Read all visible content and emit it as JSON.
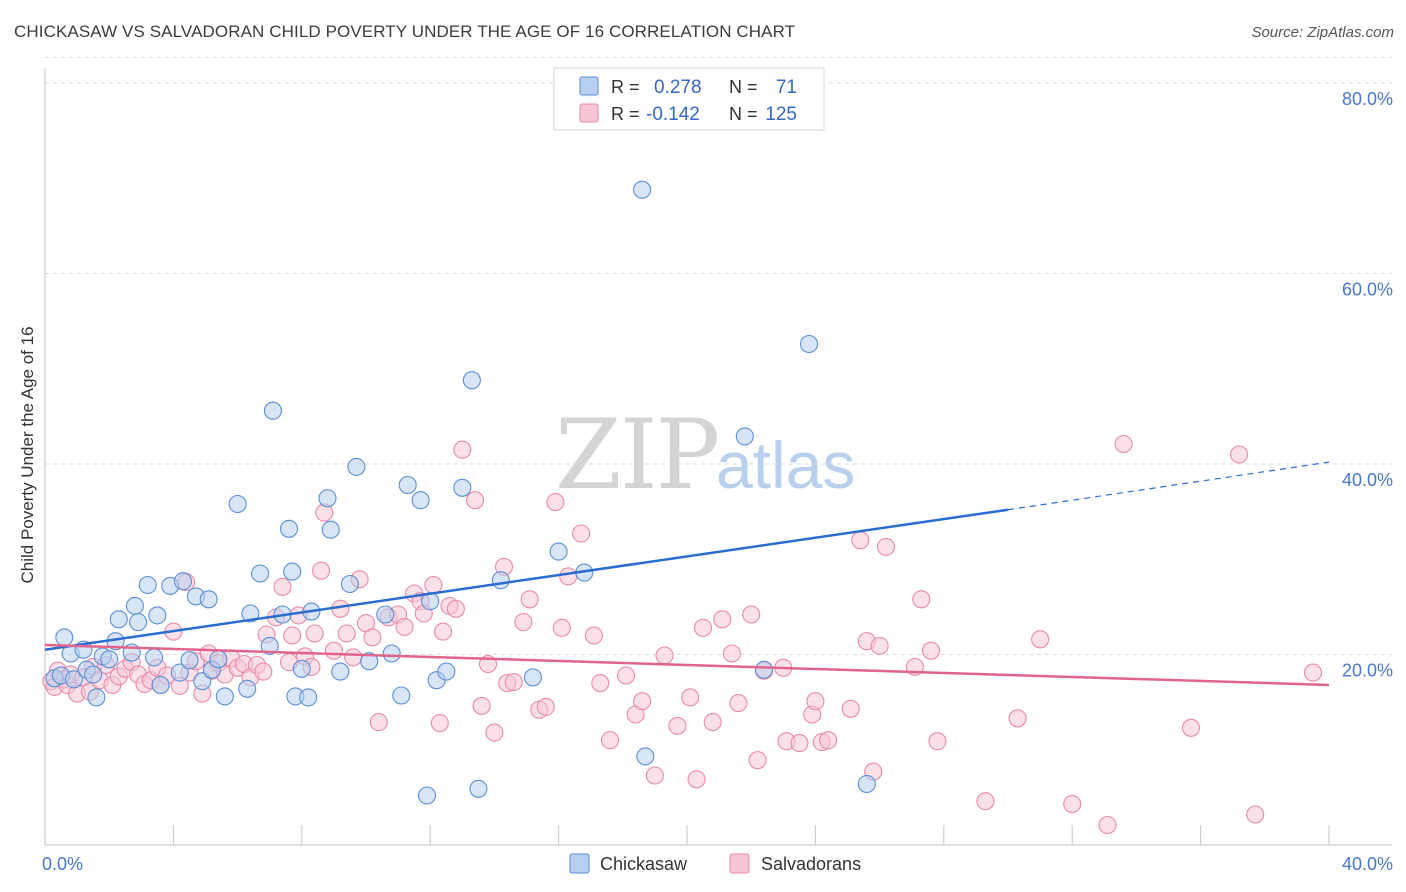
{
  "title": "CHICKASAW VS SALVADORAN CHILD POVERTY UNDER THE AGE OF 16 CORRELATION CHART",
  "source": "Source: ZipAtlas.com",
  "watermark": {
    "zip": "ZIP",
    "atlas": "atlas"
  },
  "colors": {
    "blue_fill": "#b7cff0",
    "blue_stroke": "#5b8fd6",
    "blue_line": "#2a6ccf",
    "pink_fill": "#f7c6d6",
    "pink_stroke": "#e98aa8",
    "pink_line": "#e0648c",
    "grid": "#d9d9d9",
    "tick_text": "#4a78c9"
  },
  "legend_box": {
    "rows": [
      {
        "r_label": "R =",
        "r_value": "0.278",
        "n_label": "N =",
        "n_value": "71"
      },
      {
        "r_label": "R =",
        "r_value": "-0.142",
        "n_label": "N =",
        "n_value": "125"
      }
    ]
  },
  "chart_data": {
    "type": "scatter",
    "title": "CHICKASAW VS SALVADORAN CHILD POVERTY UNDER THE AGE OF 16 CORRELATION CHART",
    "xlabel": "",
    "ylabel": "Child Poverty Under the Age of 16",
    "xlim": [
      0,
      40
    ],
    "ylim": [
      0,
      83
    ],
    "x_tick_labels": [
      "0.0%",
      "40.0%"
    ],
    "y_ticks": [
      20,
      40,
      60,
      80
    ],
    "y_tick_labels": [
      "20.0%",
      "40.0%",
      "60.0%",
      "80.0%"
    ],
    "legend_position": "bottom-center",
    "series": [
      {
        "name": "Chickasaw",
        "color": "blue",
        "trend": {
          "x0": 0,
          "y0": 20.5,
          "x1": 30,
          "y1": 35.2,
          "dash_to_x": 40,
          "dash_to_y": 40.2
        },
        "points": [
          [
            0.3,
            17.5
          ],
          [
            0.5,
            17.8
          ],
          [
            0.6,
            21.8
          ],
          [
            0.8,
            20.1
          ],
          [
            0.9,
            17.4
          ],
          [
            1.2,
            20.5
          ],
          [
            1.3,
            18.4
          ],
          [
            1.5,
            17.9
          ],
          [
            1.6,
            15.5
          ],
          [
            1.8,
            19.8
          ],
          [
            2.0,
            19.5
          ],
          [
            2.2,
            21.4
          ],
          [
            2.3,
            23.7
          ],
          [
            2.7,
            20.2
          ],
          [
            2.8,
            25.1
          ],
          [
            2.9,
            23.4
          ],
          [
            3.2,
            27.3
          ],
          [
            3.4,
            19.7
          ],
          [
            3.5,
            24.1
          ],
          [
            3.6,
            16.8
          ],
          [
            3.9,
            27.2
          ],
          [
            4.2,
            18.1
          ],
          [
            4.3,
            27.7
          ],
          [
            4.5,
            19.4
          ],
          [
            4.7,
            26.1
          ],
          [
            4.9,
            17.2
          ],
          [
            5.1,
            25.8
          ],
          [
            5.2,
            18.4
          ],
          [
            5.4,
            19.5
          ],
          [
            5.6,
            15.6
          ],
          [
            6.0,
            35.8
          ],
          [
            6.3,
            16.4
          ],
          [
            6.4,
            24.3
          ],
          [
            6.7,
            28.5
          ],
          [
            7.0,
            20.9
          ],
          [
            7.1,
            45.6
          ],
          [
            7.4,
            24.2
          ],
          [
            7.6,
            33.2
          ],
          [
            7.7,
            28.7
          ],
          [
            7.8,
            15.6
          ],
          [
            8.0,
            18.5
          ],
          [
            8.2,
            15.5
          ],
          [
            8.3,
            24.5
          ],
          [
            8.8,
            36.4
          ],
          [
            8.9,
            33.1
          ],
          [
            9.2,
            18.2
          ],
          [
            9.5,
            27.4
          ],
          [
            9.7,
            39.7
          ],
          [
            10.1,
            19.3
          ],
          [
            10.6,
            24.2
          ],
          [
            10.8,
            20.1
          ],
          [
            11.1,
            15.7
          ],
          [
            11.3,
            37.8
          ],
          [
            11.7,
            36.2
          ],
          [
            11.9,
            5.2
          ],
          [
            12.0,
            25.6
          ],
          [
            12.2,
            17.3
          ],
          [
            12.5,
            18.2
          ],
          [
            13.0,
            37.5
          ],
          [
            13.3,
            48.8
          ],
          [
            13.5,
            5.9
          ],
          [
            14.2,
            27.8
          ],
          [
            15.2,
            17.6
          ],
          [
            16.0,
            30.8
          ],
          [
            16.8,
            28.6
          ],
          [
            18.6,
            68.8
          ],
          [
            18.7,
            9.3
          ],
          [
            21.8,
            42.9
          ],
          [
            22.4,
            18.4
          ],
          [
            23.8,
            52.6
          ],
          [
            25.6,
            6.4
          ]
        ]
      },
      {
        "name": "Salvadorans",
        "color": "pink",
        "trend": {
          "x0": 0,
          "y0": 21.0,
          "x1": 40,
          "y1": 16.8
        },
        "points": [
          [
            0.2,
            17.2
          ],
          [
            0.3,
            16.6
          ],
          [
            0.4,
            18.3
          ],
          [
            0.6,
            17.4
          ],
          [
            0.7,
            16.8
          ],
          [
            0.8,
            17.9
          ],
          [
            1.0,
            15.9
          ],
          [
            1.2,
            17.6
          ],
          [
            1.4,
            16.1
          ],
          [
            1.5,
            18.7
          ],
          [
            1.7,
            17.3
          ],
          [
            1.9,
            18.9
          ],
          [
            2.1,
            16.8
          ],
          [
            2.3,
            17.7
          ],
          [
            2.5,
            18.5
          ],
          [
            2.7,
            19.2
          ],
          [
            2.9,
            17.9
          ],
          [
            3.1,
            16.9
          ],
          [
            3.3,
            17.3
          ],
          [
            3.5,
            18.6
          ],
          [
            3.6,
            16.8
          ],
          [
            3.8,
            17.8
          ],
          [
            4.0,
            22.4
          ],
          [
            4.2,
            16.7
          ],
          [
            4.4,
            27.6
          ],
          [
            4.5,
            18.1
          ],
          [
            4.7,
            19.3
          ],
          [
            4.9,
            15.9
          ],
          [
            5.1,
            20.1
          ],
          [
            5.2,
            18.3
          ],
          [
            5.4,
            19.1
          ],
          [
            5.6,
            17.9
          ],
          [
            5.8,
            19.6
          ],
          [
            6.0,
            18.6
          ],
          [
            6.2,
            19.0
          ],
          [
            6.4,
            17.6
          ],
          [
            6.6,
            18.9
          ],
          [
            6.8,
            18.2
          ],
          [
            6.9,
            22.1
          ],
          [
            7.2,
            23.9
          ],
          [
            7.4,
            27.1
          ],
          [
            7.6,
            19.2
          ],
          [
            7.7,
            22.0
          ],
          [
            7.9,
            24.1
          ],
          [
            8.1,
            19.8
          ],
          [
            8.3,
            18.7
          ],
          [
            8.4,
            22.2
          ],
          [
            8.6,
            28.8
          ],
          [
            8.7,
            34.9
          ],
          [
            9.0,
            20.4
          ],
          [
            9.2,
            24.8
          ],
          [
            9.4,
            22.2
          ],
          [
            9.6,
            19.7
          ],
          [
            9.8,
            27.9
          ],
          [
            10.0,
            23.3
          ],
          [
            10.2,
            21.8
          ],
          [
            10.4,
            12.9
          ],
          [
            10.7,
            23.9
          ],
          [
            11.0,
            24.2
          ],
          [
            11.2,
            22.9
          ],
          [
            11.5,
            26.4
          ],
          [
            11.7,
            25.6
          ],
          [
            11.8,
            24.3
          ],
          [
            12.1,
            27.3
          ],
          [
            12.3,
            12.8
          ],
          [
            12.4,
            22.4
          ],
          [
            12.6,
            25.1
          ],
          [
            12.8,
            24.8
          ],
          [
            13.0,
            41.5
          ],
          [
            13.4,
            36.2
          ],
          [
            13.6,
            14.6
          ],
          [
            13.8,
            19.0
          ],
          [
            14.0,
            11.8
          ],
          [
            14.3,
            29.2
          ],
          [
            14.4,
            17.0
          ],
          [
            14.6,
            17.1
          ],
          [
            14.9,
            23.4
          ],
          [
            15.1,
            25.8
          ],
          [
            15.4,
            14.2
          ],
          [
            15.6,
            14.5
          ],
          [
            15.9,
            36.0
          ],
          [
            16.1,
            22.8
          ],
          [
            16.3,
            28.2
          ],
          [
            16.7,
            32.7
          ],
          [
            17.1,
            22.0
          ],
          [
            17.3,
            17.0
          ],
          [
            17.6,
            11.0
          ],
          [
            18.1,
            17.8
          ],
          [
            18.4,
            13.7
          ],
          [
            18.6,
            15.1
          ],
          [
            19.0,
            7.3
          ],
          [
            19.3,
            19.9
          ],
          [
            19.7,
            12.5
          ],
          [
            20.1,
            15.5
          ],
          [
            20.3,
            6.9
          ],
          [
            20.5,
            22.8
          ],
          [
            20.8,
            12.9
          ],
          [
            21.1,
            23.7
          ],
          [
            21.4,
            20.1
          ],
          [
            21.6,
            14.9
          ],
          [
            22.0,
            24.2
          ],
          [
            22.2,
            8.9
          ],
          [
            22.4,
            18.3
          ],
          [
            23.0,
            18.6
          ],
          [
            23.1,
            10.9
          ],
          [
            23.5,
            10.7
          ],
          [
            23.9,
            13.7
          ],
          [
            24.0,
            15.1
          ],
          [
            24.2,
            10.8
          ],
          [
            24.4,
            11.0
          ],
          [
            25.1,
            14.3
          ],
          [
            25.4,
            32.0
          ],
          [
            25.6,
            21.4
          ],
          [
            25.8,
            7.7
          ],
          [
            26.0,
            20.9
          ],
          [
            26.2,
            31.3
          ],
          [
            27.1,
            18.7
          ],
          [
            27.3,
            25.8
          ],
          [
            27.6,
            20.4
          ],
          [
            27.8,
            10.9
          ],
          [
            29.3,
            4.6
          ],
          [
            30.3,
            13.3
          ],
          [
            31.0,
            21.6
          ],
          [
            32.0,
            4.3
          ],
          [
            33.1,
            2.1
          ],
          [
            33.6,
            42.1
          ],
          [
            35.7,
            12.3
          ],
          [
            37.2,
            41.0
          ],
          [
            37.7,
            3.2
          ],
          [
            39.5,
            18.1
          ]
        ]
      }
    ]
  }
}
